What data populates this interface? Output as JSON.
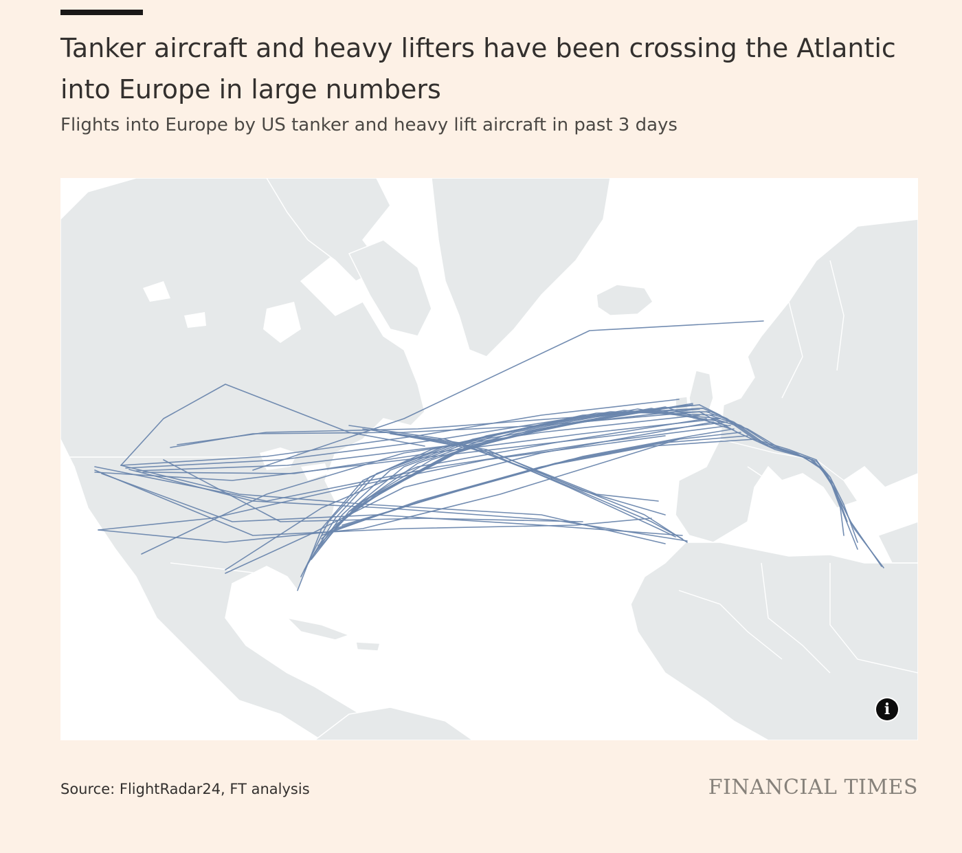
{
  "header": {
    "title": "Tanker aircraft and heavy lifters have been crossing the Atlantic into Europe in large numbers",
    "subtitle": "Flights into Europe by US tanker and heavy lift aircraft in past 3 days"
  },
  "map": {
    "colors": {
      "land": "#e6e9ea",
      "water": "#ffffff",
      "flight_path": "#6a86ad",
      "borders": "#ffffff"
    },
    "info_icon": "info-icon"
  },
  "footer": {
    "source": "Source: FlightRadar24, FT analysis",
    "brand": "FINANCIAL TIMES"
  }
}
